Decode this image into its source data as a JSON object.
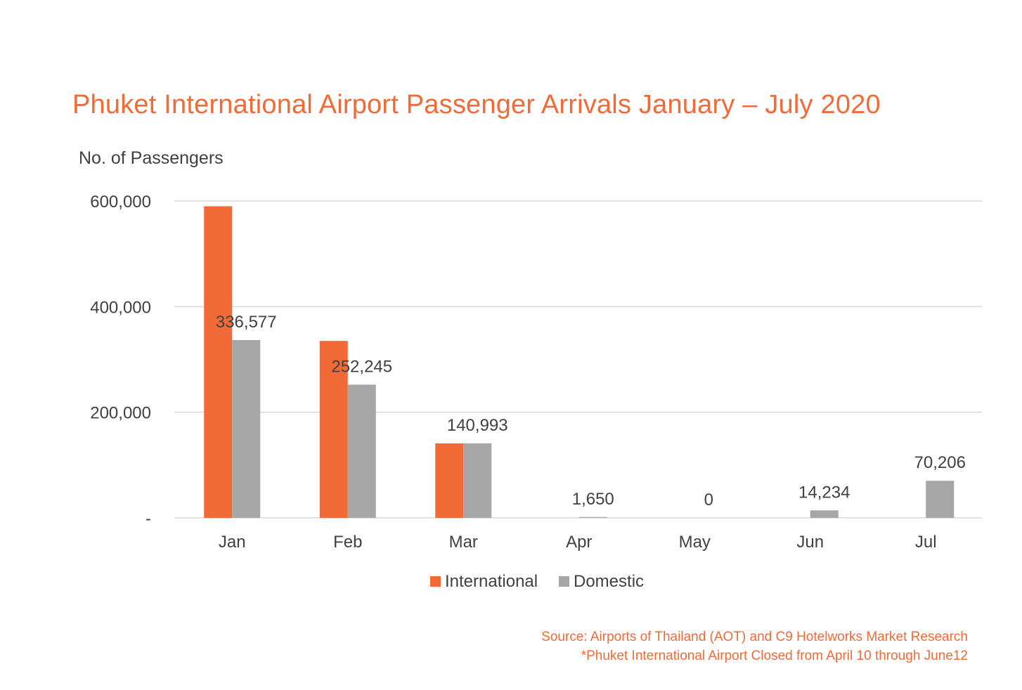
{
  "colors": {
    "international": "#f26a35",
    "domestic": "#a6a6a6",
    "grid": "#d9d9d9",
    "text": "#404040",
    "accent": "#f26a35"
  },
  "chart_data": {
    "type": "bar",
    "title": "Phuket International Airport Passenger Arrivals January – July 2020",
    "ylabel": "No. of Passengers",
    "xlabel": "",
    "categories": [
      "Jan",
      "Feb",
      "Mar",
      "Apr",
      "May",
      "Jun",
      "Jul"
    ],
    "ylim": [
      0,
      600000
    ],
    "yticks": [
      {
        "value": 0,
        "label": "-"
      },
      {
        "value": 200000,
        "label": "200,000"
      },
      {
        "value": 400000,
        "label": "400,000"
      },
      {
        "value": 600000,
        "label": "600,000"
      }
    ],
    "grid": true,
    "legend_position": "bottom-center",
    "series": [
      {
        "name": "International",
        "values": [
          590000,
          335000,
          140993,
          0,
          0,
          0,
          0
        ],
        "data_labels": [
          null,
          null,
          null,
          null,
          null,
          null,
          null
        ]
      },
      {
        "name": "Domestic",
        "values": [
          336577,
          252245,
          140993,
          1650,
          0,
          14234,
          70206
        ],
        "data_labels": [
          "336,577",
          "252,245",
          "140,993",
          "1,650",
          "0",
          "14,234",
          "70,206"
        ]
      }
    ]
  },
  "footer": {
    "source": "Source: Airports of Thailand (AOT) and C9 Hotelworks Market Research",
    "note": "*Phuket International Airport Closed from April 10 through June12"
  }
}
